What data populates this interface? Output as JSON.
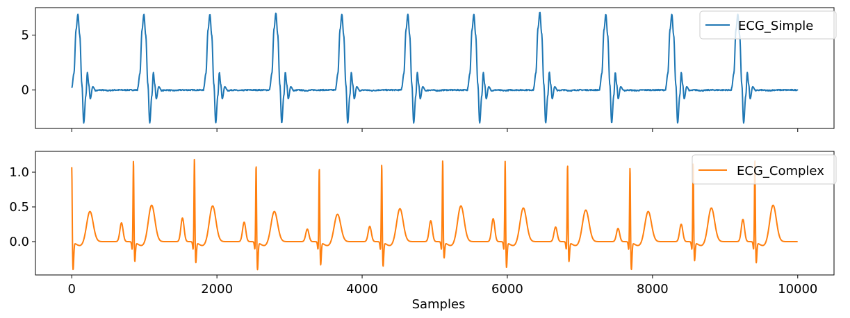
{
  "chart_data": [
    {
      "type": "line",
      "xlim": [
        -500,
        10500
      ],
      "ylim": [
        -3.5,
        7.5
      ],
      "xticks": [
        0,
        2000,
        4000,
        6000,
        8000,
        10000
      ],
      "xtick_labels_visible": false,
      "yticks": [
        0,
        5
      ],
      "ytick_labels": [
        "0",
        "5"
      ],
      "grid": false,
      "legend_position": "top-right",
      "series": [
        {
          "name": "ECG_Simple",
          "color": "#1f77b4",
          "beat_starts": [
            0,
            909,
            1818,
            2727,
            3636,
            4545,
            5454,
            6363,
            7272,
            8181,
            9090
          ],
          "r_peaks": [
            6.9,
            6.9,
            6.9,
            7.0,
            6.9,
            6.9,
            6.9,
            7.1,
            6.9,
            6.9,
            6.9
          ],
          "approx_points": [
            [
              0,
              0.2
            ],
            [
              30,
              1.5
            ],
            [
              60,
              5.5
            ],
            [
              85,
              6.9
            ],
            [
              110,
              5.0
            ],
            [
              140,
              0.5
            ],
            [
              165,
              -3.0
            ],
            [
              195,
              -0.5
            ],
            [
              215,
              1.6
            ],
            [
              235,
              0.5
            ],
            [
              255,
              -0.8
            ],
            [
              290,
              0.3
            ],
            [
              330,
              -0.05
            ],
            [
              400,
              0.0
            ],
            [
              500,
              -0.05
            ],
            [
              600,
              0.0
            ],
            [
              860,
              0.0
            ]
          ],
          "noise_level": 0.05,
          "x": [
            0,
            10000
          ]
        }
      ]
    },
    {
      "type": "line",
      "xlim": [
        -500,
        10500
      ],
      "ylim": [
        -0.48,
        1.3
      ],
      "xticks": [
        0,
        2000,
        4000,
        6000,
        8000,
        10000
      ],
      "xtick_labels": [
        "0",
        "2000",
        "4000",
        "6000",
        "8000",
        "10000"
      ],
      "yticks": [
        0.0,
        0.5,
        1.0
      ],
      "ytick_labels": [
        "0.0",
        "0.5",
        "1.0"
      ],
      "xlabel": "Samples",
      "grid": false,
      "legend_position": "top-right",
      "series": [
        {
          "name": "ECG_Complex",
          "color": "#ff7f0e",
          "r_peak_positions": [
            0,
            850,
            1690,
            2540,
            3410,
            4270,
            5110,
            5970,
            6830,
            7690,
            8560,
            9410
          ],
          "r_peak_values": [
            1.1,
            1.18,
            1.21,
            1.13,
            1.08,
            1.13,
            1.18,
            1.18,
            1.12,
            1.09,
            1.14,
            1.2
          ],
          "s_trough_values": [
            -0.35,
            -0.23,
            -0.25,
            -0.35,
            -0.28,
            -0.3,
            -0.18,
            -0.32,
            -0.23,
            -0.35,
            -0.22,
            -0.25
          ],
          "t_wave_values": [
            0.39,
            0.48,
            0.47,
            0.39,
            0.35,
            0.43,
            0.47,
            0.44,
            0.41,
            0.39,
            0.44,
            0.48
          ],
          "p_wave_values": [
            0.27,
            0.34,
            0.28,
            0.18,
            0.22,
            0.3,
            0.33,
            0.21,
            0.19,
            0.25,
            0.32
          ],
          "baseline": 0.0,
          "x": [
            0,
            10000
          ]
        }
      ]
    }
  ]
}
